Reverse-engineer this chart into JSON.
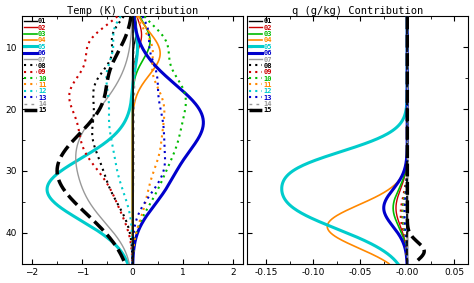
{
  "title_left": "Temp (K) Contribution",
  "title_right": "q (g/kg) Contribution",
  "channels": [
    "01",
    "02",
    "03",
    "04",
    "05",
    "06",
    "07",
    "08",
    "09",
    "10",
    "11",
    "12",
    "13",
    "14",
    "15"
  ],
  "colors": [
    "#000000",
    "#cc0000",
    "#00bb00",
    "#ff8800",
    "#00cccc",
    "#0000cc",
    "#999999",
    "#000000",
    "#cc0000",
    "#00bb00",
    "#ff8800",
    "#00cccc",
    "#0000cc",
    "#999999",
    "#000000"
  ],
  "linestyles_solid": [
    "-",
    "-",
    "-",
    "-",
    "-",
    "-",
    "-"
  ],
  "linestyles_dot": [
    ":",
    ":",
    ":",
    ":",
    ":",
    ":",
    ":",
    ":"
  ],
  "xlim_left": [
    -2.2,
    2.2
  ],
  "xlim_right": [
    -0.17,
    0.065
  ],
  "ylim_top": 5,
  "ylim_bottom": 45,
  "ylabel_ticks": [
    10,
    20,
    30,
    40
  ],
  "xticks_left": [
    -2,
    -1,
    0,
    1,
    2
  ],
  "xticks_right": [
    -0.15,
    -0.1,
    -0.05,
    -0.0,
    0.05
  ],
  "background_color": "#ffffff"
}
